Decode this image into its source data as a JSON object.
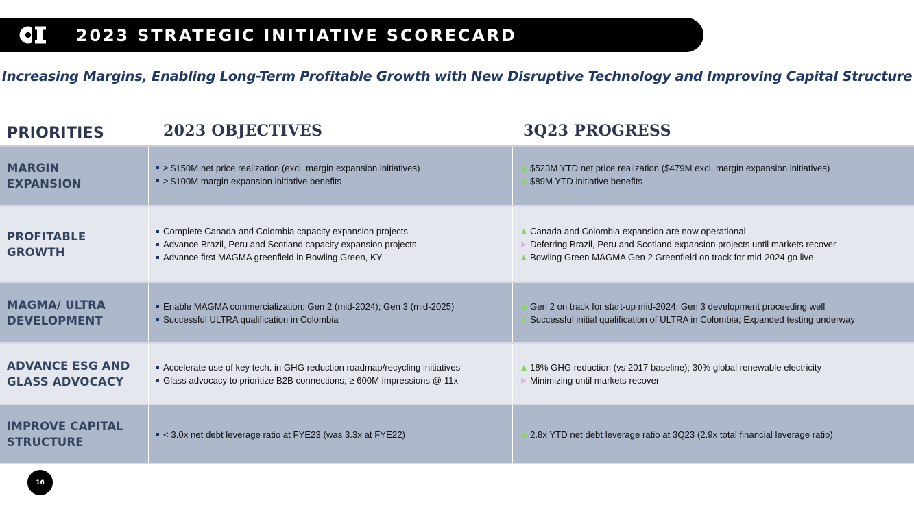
{
  "header": {
    "title": "2023 STRATEGIC INITIATIVE SCORECARD",
    "subtitle": "Increasing Margins, Enabling Long-Term Profitable Growth with New Disruptive Technology and Improving Capital Structure"
  },
  "columns": {
    "priorities": "PRIORITIES",
    "objectives": "2023 OBJECTIVES",
    "progress": "3Q23 PROGRESS"
  },
  "colors": {
    "title_bar": "#000000",
    "subtitle": "#1f3864",
    "row_dark": "#aeb8cb",
    "row_light": "#e4e7ee",
    "status_up": "#8fd16a",
    "status_deferred": "#e4b3ee"
  },
  "rows": [
    {
      "priority": [
        "MARGIN",
        "EXPANSION"
      ],
      "objectives": [
        "≥ $150M net price realization (excl. margin expansion initiatives)",
        "≥ $100M margin expansion initiative benefits"
      ],
      "progress": [
        {
          "status": "up",
          "text": "$523M YTD net price realization ($479M excl. margin expansion initiatives)"
        },
        {
          "status": "up",
          "text": "$89M YTD initiative benefits"
        }
      ]
    },
    {
      "priority": [
        "PROFITABLE",
        "GROWTH"
      ],
      "objectives": [
        "Complete Canada and Colombia capacity expansion projects",
        "Advance Brazil, Peru and Scotland capacity expansion projects",
        "Advance first MAGMA greenfield in Bowling Green, KY"
      ],
      "progress": [
        {
          "status": "up",
          "text": "Canada and Colombia expansion are now operational"
        },
        {
          "status": "deferred",
          "text": "Deferring Brazil, Peru and Scotland expansion projects until markets recover"
        },
        {
          "status": "up",
          "text": "Bowling Green MAGMA Gen 2 Greenfield on track for mid-2024 go live"
        }
      ]
    },
    {
      "priority": [
        "MAGMA/ ULTRA",
        "DEVELOPMENT"
      ],
      "objectives": [
        "Enable MAGMA commercialization:  Gen 2 (mid-2024); Gen 3 (mid-2025)",
        "Successful ULTRA qualification in Colombia"
      ],
      "progress": [
        {
          "status": "up",
          "text": "Gen 2 on track for start-up mid-2024; Gen 3 development proceeding well"
        },
        {
          "status": "up",
          "text": "Successful initial qualification of ULTRA in Colombia; Expanded testing underway"
        }
      ]
    },
    {
      "priority": [
        "ADVANCE ESG AND",
        "GLASS ADVOCACY"
      ],
      "objectives": [
        "Accelerate use of key tech. in GHG reduction roadmap/recycling initiatives",
        "Glass advocacy to prioritize B2B connections; ≥ 600M impressions @ 11x"
      ],
      "progress": [
        {
          "status": "up",
          "text": "18% GHG reduction (vs 2017 baseline);  30% global renewable electricity"
        },
        {
          "status": "deferred",
          "text": "Minimizing until markets recover"
        }
      ]
    },
    {
      "priority": [
        "IMPROVE CAPITAL",
        "STRUCTURE"
      ],
      "objectives": [
        "< 3.0x net debt leverage ratio at FYE23 (was 3.3x at FYE22)"
      ],
      "progress": [
        {
          "status": "up",
          "text": "2.8x YTD net debt leverage ratio at 3Q23 (2.9x total financial leverage ratio)"
        }
      ]
    }
  ],
  "footer": {
    "page_number": "16"
  }
}
